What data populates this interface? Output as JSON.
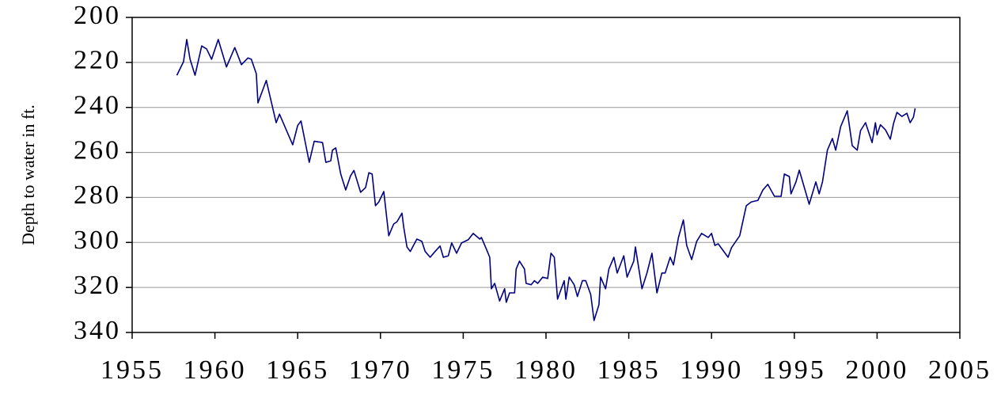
{
  "chart_data": {
    "type": "line",
    "y_label": "Depth to water in ft.",
    "xlim": [
      1955,
      2005
    ],
    "xticks": [
      1955,
      1960,
      1965,
      1970,
      1975,
      1980,
      1985,
      1990,
      1995,
      2000,
      2005
    ],
    "ylim": [
      200,
      340
    ],
    "yticks": [
      200,
      220,
      240,
      260,
      280,
      300,
      320,
      340
    ],
    "y_inverted": true,
    "grid": true,
    "series": [
      {
        "color": "#000080",
        "x": [
          1957.7,
          1958.1,
          1958.3,
          1958.5,
          1958.8,
          1959.2,
          1959.5,
          1959.8,
          1960.2,
          1960.7,
          1961.2,
          1961.6,
          1962.0,
          1962.2,
          1962.5,
          1962.6,
          1963.1,
          1963.7,
          1963.9,
          1964.7,
          1965.0,
          1965.2,
          1965.7,
          1966.0,
          1966.5,
          1966.7,
          1967.0,
          1967.1,
          1967.3,
          1967.6,
          1967.9,
          1968.2,
          1968.4,
          1968.8,
          1969.1,
          1969.3,
          1969.5,
          1969.7,
          1969.9,
          1970.2,
          1970.5,
          1970.8,
          1971.0,
          1971.3,
          1971.4,
          1971.6,
          1971.8,
          1972.2,
          1972.5,
          1972.7,
          1973.0,
          1973.3,
          1973.6,
          1973.8,
          1974.1,
          1974.3,
          1974.6,
          1974.9,
          1975.3,
          1975.6,
          1976.0,
          1976.1,
          1976.4,
          1976.6,
          1976.7,
          1976.9,
          1977.2,
          1977.5,
          1977.6,
          1977.8,
          1978.1,
          1978.2,
          1978.4,
          1978.7,
          1978.8,
          1979.1,
          1979.3,
          1979.5,
          1979.8,
          1980.1,
          1980.3,
          1980.5,
          1980.7,
          1981.1,
          1981.2,
          1981.4,
          1981.7,
          1981.9,
          1982.2,
          1982.4,
          1982.7,
          1982.9,
          1983.2,
          1983.3,
          1983.6,
          1983.8,
          1984.1,
          1984.3,
          1984.7,
          1984.9,
          1985.3,
          1985.4,
          1985.8,
          1986.1,
          1986.4,
          1986.7,
          1987.0,
          1987.2,
          1987.5,
          1987.7,
          1988.0,
          1988.3,
          1988.5,
          1988.8,
          1989.1,
          1989.4,
          1989.8,
          1990.0,
          1990.2,
          1990.4,
          1991.0,
          1991.2,
          1991.7,
          1992.1,
          1992.4,
          1992.8,
          1993.1,
          1993.4,
          1993.8,
          1994.2,
          1994.4,
          1994.7,
          1994.8,
          1995.1,
          1995.3,
          1995.9,
          1996.3,
          1996.5,
          1996.7,
          1997.0,
          1997.3,
          1997.5,
          1997.8,
          1998.2,
          1998.5,
          1998.8,
          1999.0,
          1999.3,
          1999.7,
          1999.9,
          2000.0,
          2000.2,
          2000.5,
          2000.8,
          2001.0,
          2001.2,
          2001.5,
          2001.8,
          2002.0,
          2002.2,
          2002.3
        ],
        "values": [
          225.7,
          219.7,
          209.8,
          218.6,
          225.7,
          212.7,
          214,
          218.6,
          209.8,
          222,
          213.4,
          221,
          218,
          218.6,
          225,
          238,
          228,
          246.8,
          243,
          256.6,
          248,
          246,
          264.4,
          255,
          255.6,
          264.4,
          263.7,
          259,
          258,
          269.6,
          276.7,
          270.3,
          268,
          277.7,
          275.6,
          269,
          269.6,
          283.7,
          282,
          277.4,
          297,
          291.8,
          290.8,
          287,
          293,
          302,
          304,
          298.5,
          299.5,
          304,
          306.6,
          304,
          301.6,
          306.6,
          305.9,
          300.2,
          304.8,
          300.2,
          298.8,
          296,
          298.5,
          297.8,
          303,
          306.6,
          320.6,
          318.2,
          326,
          320.6,
          326.6,
          322.4,
          322.4,
          311.8,
          308.3,
          311.8,
          318.2,
          318.8,
          317,
          318.2,
          315.4,
          316,
          304.8,
          306.6,
          325.2,
          317,
          325.2,
          315.4,
          318.8,
          324,
          317,
          317,
          323.1,
          334.7,
          327.7,
          315.4,
          320.6,
          311.8,
          306.6,
          313.6,
          305.9,
          315.4,
          308.3,
          302,
          320.6,
          313.6,
          304.8,
          322.4,
          313.6,
          313.6,
          306.6,
          310,
          297.8,
          290,
          301.3,
          307.6,
          299.5,
          296,
          297.8,
          296,
          301.3,
          300.6,
          306.6,
          302.4,
          297,
          283.7,
          282,
          281.3,
          276.7,
          274.2,
          279.5,
          279.5,
          269.6,
          270.7,
          278.4,
          273.1,
          267.9,
          283,
          273.1,
          278.4,
          273.1,
          259,
          253.8,
          259,
          248.5,
          241.5,
          257,
          259,
          250.3,
          246.8,
          255.6,
          246.8,
          252.2,
          247.7,
          249.9,
          254.1,
          247,
          242.2,
          244,
          242.6,
          246.8,
          244.3,
          240.4
        ]
      }
    ]
  }
}
